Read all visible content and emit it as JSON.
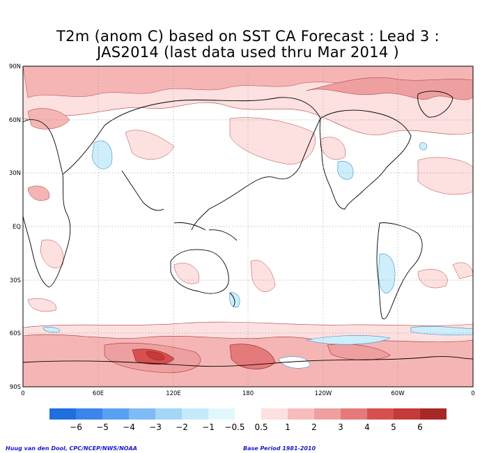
{
  "title": {
    "line1": "T2m (anom C) based on SST CA Forecast : Lead 3 :",
    "line2": "JAS2014 (last data used thru Mar 2014 )"
  },
  "map": {
    "projection": "global, 0 to 360 longitude, 90S to 90N",
    "lat_ticks": [
      "90N",
      "60N",
      "30N",
      "EQ",
      "30S",
      "60S",
      "90S"
    ],
    "lon_ticks": [
      "0",
      "60E",
      "120E",
      "180",
      "120W",
      "60W",
      "0"
    ],
    "gridlines": "dotted",
    "colors": {
      "warm_light": "#fde0e0",
      "warm_mid": "#f6b5b5",
      "warm_dark": "#e06464",
      "warm_darker": "#c83c3c",
      "cool_light": "#cdeefa",
      "cool_mid": "#9ad6f2",
      "coast": "#000000",
      "contour": "#8a2a2a"
    }
  },
  "colorbar": {
    "labels": [
      "−6",
      "−5",
      "−4",
      "−3",
      "−2",
      "−1",
      "−0.5",
      "0.5",
      "1",
      "2",
      "3",
      "4",
      "5",
      "6"
    ],
    "colors": [
      "#1f6fe0",
      "#3b84ec",
      "#5aa0f2",
      "#7fbbf5",
      "#a4d6f7",
      "#c5ebfa",
      "#e0f8fb",
      "#ffffff",
      "#fde0e0",
      "#f7bdbd",
      "#eea0a0",
      "#e57a7a",
      "#d84f4f",
      "#c53a3a",
      "#a82828"
    ]
  },
  "credits": {
    "left": "Huug van den Dool, CPC/NCEP/NWS/NOAA",
    "right": "Base Period 1981-2010"
  }
}
